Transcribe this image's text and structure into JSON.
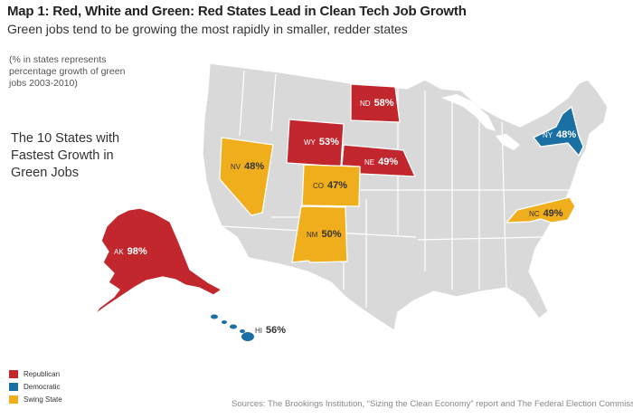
{
  "title": "Map 1: Red, White and Green: Red States Lead in Clean Tech Job Growth",
  "subtitle": "Green jobs tend to be growing the most rapidly in smaller, redder states",
  "note": "(% in states represents percentage growth of green jobs 2003-2010)",
  "heading": "The 10 States with Fastest Growth in Green Jobs",
  "colors": {
    "republican": "#c1272d",
    "democratic": "#1a6fa3",
    "swing": "#f0ae1d",
    "other": "#d9d9d9"
  },
  "states": [
    {
      "abbr": "AK",
      "value": "98%",
      "party": "republican"
    },
    {
      "abbr": "ND",
      "value": "58%",
      "party": "republican"
    },
    {
      "abbr": "HI",
      "value": "56%",
      "party": "democratic"
    },
    {
      "abbr": "WY",
      "value": "53%",
      "party": "republican"
    },
    {
      "abbr": "NM",
      "value": "50%",
      "party": "swing"
    },
    {
      "abbr": "NE",
      "value": "49%",
      "party": "republican"
    },
    {
      "abbr": "NC",
      "value": "49%",
      "party": "swing"
    },
    {
      "abbr": "NV",
      "value": "48%",
      "party": "swing"
    },
    {
      "abbr": "NY",
      "value": "48%",
      "party": "democratic"
    },
    {
      "abbr": "CO",
      "value": "47%",
      "party": "swing"
    }
  ],
  "legend": [
    {
      "label": "Republican",
      "party": "republican"
    },
    {
      "label": "Democratic",
      "party": "democratic"
    },
    {
      "label": "Swing State",
      "party": "swing"
    }
  ],
  "source": "Sources: The Brookings Institution, “Sizing the Clean Economy” report and The Federal Election Commission"
}
